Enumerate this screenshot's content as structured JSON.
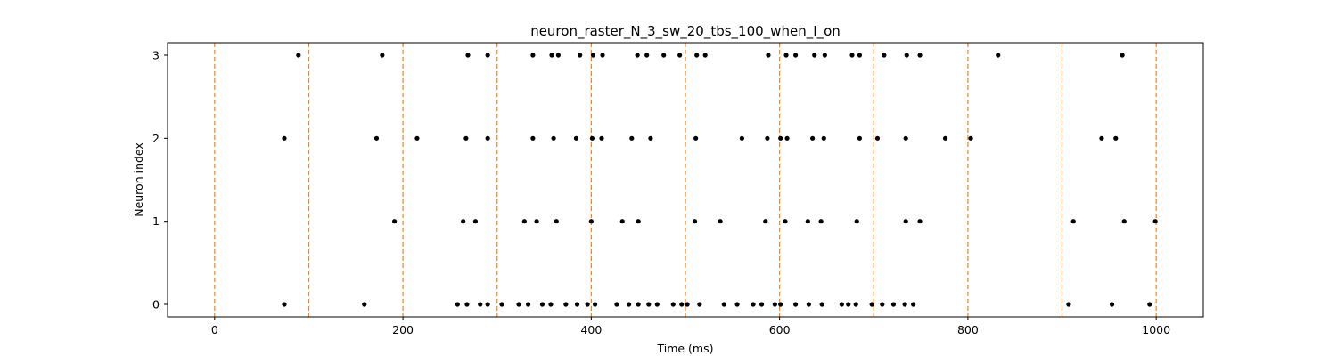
{
  "chart_data": {
    "type": "scatter",
    "title": "neuron_raster_N_3_sw_20_tbs_100_when_I_on",
    "xlabel": "Time (ms)",
    "ylabel": "Neuron index",
    "xlim": [
      -50,
      1050
    ],
    "ylim": [
      -0.15,
      3.15
    ],
    "xticks": [
      0,
      200,
      400,
      600,
      800,
      1000
    ],
    "yticks": [
      0,
      1,
      2,
      3
    ],
    "grid": false,
    "colors": {
      "points": "#000000",
      "vlines": "#ff7f0e"
    },
    "vlines": {
      "x": [
        0,
        100,
        200,
        300,
        400,
        500,
        600,
        700,
        800,
        900,
        1000
      ],
      "style": "dashed"
    },
    "series": [
      {
        "y": 0,
        "x": [
          74,
          159,
          258,
          268,
          282,
          290,
          305,
          323,
          333,
          348,
          357,
          373,
          385,
          396,
          404,
          427,
          440,
          450,
          461,
          470,
          487,
          496,
          502,
          515,
          541,
          555,
          572,
          581,
          595,
          601,
          617,
          631,
          645,
          666,
          673,
          681,
          698,
          709,
          721,
          733,
          742,
          907,
          953,
          993
        ]
      },
      {
        "y": 1,
        "x": [
          191,
          264,
          277,
          329,
          342,
          363,
          400,
          433,
          450,
          510,
          537,
          585,
          606,
          630,
          644,
          682,
          734,
          749,
          912,
          966,
          999
        ]
      },
      {
        "y": 2,
        "x": [
          74,
          172,
          215,
          267,
          290,
          338,
          360,
          384,
          401,
          411,
          443,
          463,
          511,
          560,
          587,
          601,
          608,
          635,
          647,
          685,
          704,
          734,
          776,
          803,
          942,
          957
        ]
      },
      {
        "y": 3,
        "x": [
          89,
          178,
          269,
          290,
          338,
          358,
          365,
          388,
          402,
          412,
          449,
          459,
          477,
          494,
          512,
          521,
          588,
          607,
          617,
          637,
          648,
          677,
          685,
          711,
          735,
          749,
          832,
          964
        ]
      }
    ]
  }
}
